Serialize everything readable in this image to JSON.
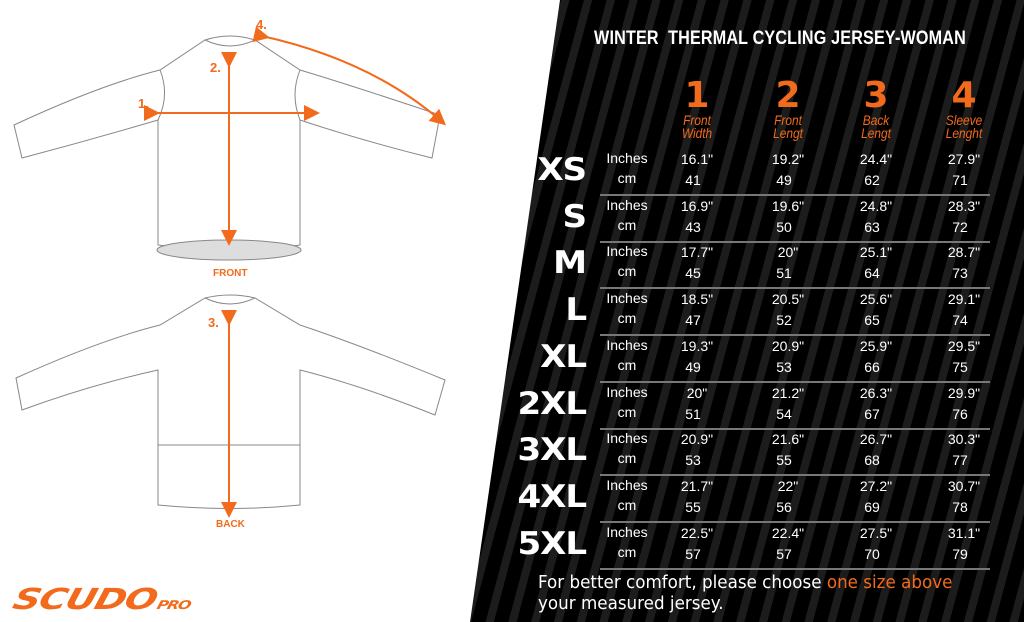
{
  "title": "WINTER  THERMAL CYCLING JERSEY-WOMAN",
  "colors": {
    "accent": "#f26a1b",
    "background": "#000000",
    "text": "#ffffff"
  },
  "columns": [
    {
      "number": "1",
      "name_line1": "Front",
      "name_line2": "Width"
    },
    {
      "number": "2",
      "name_line1": "Front",
      "name_line2": "Lengt"
    },
    {
      "number": "3",
      "name_line1": "Back",
      "name_line2": "Lengt"
    },
    {
      "number": "4",
      "name_line1": "Sleeve",
      "name_line2": "Lenght"
    }
  ],
  "units": {
    "inches": "Inches",
    "cm": "cm"
  },
  "rows": [
    {
      "size": "XS",
      "inches": [
        "16.1\"",
        "19.2\"",
        "24.4\"",
        "27.9\""
      ],
      "cm": [
        "41",
        "49",
        "62",
        "71"
      ]
    },
    {
      "size": "S",
      "inches": [
        "16.9\"",
        "19.6\"",
        "24.8\"",
        "28.3\""
      ],
      "cm": [
        "43",
        "50",
        "63",
        "72"
      ]
    },
    {
      "size": "M",
      "inches": [
        "17.7\"",
        "20\"",
        "25.1\"",
        "28.7\""
      ],
      "cm": [
        "45",
        "51",
        "64",
        "73"
      ]
    },
    {
      "size": "L",
      "inches": [
        "18.5\"",
        "20.5\"",
        "25.6\"",
        "29.1\""
      ],
      "cm": [
        "47",
        "52",
        "65",
        "74"
      ]
    },
    {
      "size": "XL",
      "inches": [
        "19.3\"",
        "20.9\"",
        "25.9\"",
        "29.5\""
      ],
      "cm": [
        "49",
        "53",
        "66",
        "75"
      ]
    },
    {
      "size": "2XL",
      "inches": [
        "20\"",
        "21.2\"",
        "26.3\"",
        "29.9\""
      ],
      "cm": [
        "51",
        "54",
        "67",
        "76"
      ]
    },
    {
      "size": "3XL",
      "inches": [
        "20.9\"",
        "21.6\"",
        "26.7\"",
        "30.3\""
      ],
      "cm": [
        "53",
        "55",
        "68",
        "77"
      ]
    },
    {
      "size": "4XL",
      "inches": [
        "21.7\"",
        "22\"",
        "27.2\"",
        "30.7\""
      ],
      "cm": [
        "55",
        "56",
        "69",
        "78"
      ]
    },
    {
      "size": "5XL",
      "inches": [
        "22.5\"",
        "22.4\"",
        "27.5\"",
        "31.1\""
      ],
      "cm": [
        "57",
        "57",
        "70",
        "79"
      ]
    }
  ],
  "note": {
    "before": "For better comfort, please choose ",
    "highlight": "one size above",
    "after": "your measured jersey."
  },
  "diagram": {
    "front_label": "FRONT",
    "back_label": "BACK",
    "markers": [
      "1.",
      "2.",
      "3.",
      "4."
    ]
  },
  "logo": {
    "text": "SCUDO",
    "suffix": "PRO"
  }
}
